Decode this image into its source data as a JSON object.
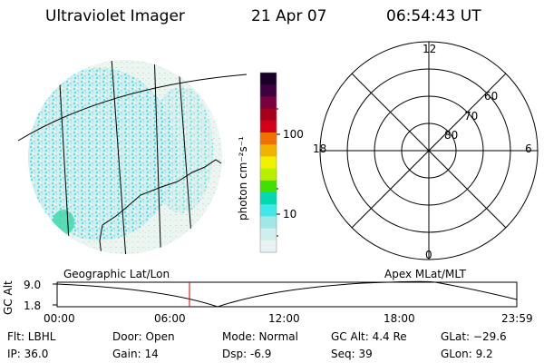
{
  "header": {
    "title": "Ultraviolet Imager",
    "date": "21 Apr 07",
    "time": "06:54:43 UT"
  },
  "colorbar": {
    "unit_label": "photon cm⁻²s⁻¹",
    "ticks": [
      {
        "label": "100",
        "value": 100
      },
      {
        "label": "10",
        "value": 10
      }
    ],
    "colors": [
      "#1a0026",
      "#3d0040",
      "#7a0040",
      "#a8001a",
      "#d4001a",
      "#f07000",
      "#f0b400",
      "#f0f000",
      "#b8f000",
      "#40e000",
      "#00d8b0",
      "#40e8e8",
      "#a0e8e8",
      "#d0eeee",
      "#e8f2f2"
    ]
  },
  "polar": {
    "lat_rings": [
      {
        "label": "80"
      },
      {
        "label": "70"
      },
      {
        "label": "60"
      }
    ],
    "mlt_labels": {
      "top": "12",
      "bottom": "0",
      "left": "18",
      "right": "6"
    }
  },
  "timeline": {
    "left_title": "Geographic Lat/Lon",
    "right_title": "Apex MLat/MLT",
    "axis_label": "GC Alt",
    "y_ticks": [
      {
        "label": "9.0"
      },
      {
        "label": "1.8"
      }
    ],
    "x_ticks": [
      "00:00",
      "06:00",
      "12:00",
      "18:00",
      "23:59"
    ],
    "current_time_hours": 6.91
  },
  "status": {
    "flt": "Flt: LBHL",
    "ip": "IP: 36.0",
    "door": "Door: Open",
    "gain": "Gain: 14",
    "mode": "Mode: Normal",
    "dsp": "Dsp:    -6.9",
    "gc_alt": "GC Alt: 4.4 Re",
    "seq": "Seq: 39",
    "glat": "GLat: −29.6",
    "glon": "GLon:   9.2"
  }
}
